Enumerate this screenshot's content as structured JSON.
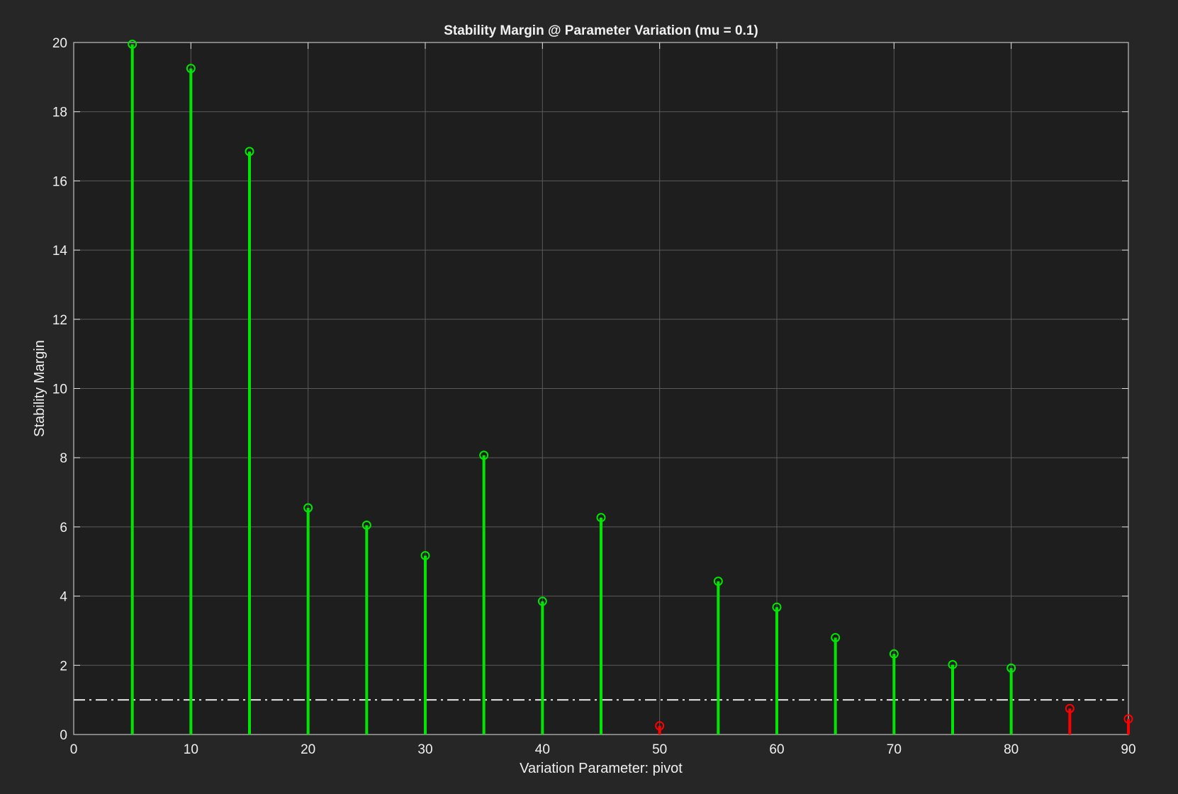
{
  "chart_data": {
    "type": "stem",
    "title": "Stability Margin @ Parameter Variation (mu = 0.1)",
    "xlabel": "Variation Parameter: pivot",
    "ylabel": "Stability Margin",
    "xlim": [
      0,
      90
    ],
    "ylim": [
      0,
      20
    ],
    "xticks": [
      0,
      10,
      20,
      30,
      40,
      50,
      60,
      70,
      80,
      90
    ],
    "yticks": [
      0,
      2,
      4,
      6,
      8,
      10,
      12,
      14,
      16,
      18,
      20
    ],
    "grid": true,
    "threshold": 1,
    "colors": {
      "background": "#262626",
      "axes_background": "#1e1e1e",
      "grid": "#5a5a5a",
      "stable": "#00e600",
      "unstable": "#ff0000",
      "threshold_line": "#e6e6e6",
      "text": "#f0f0f0"
    },
    "x": [
      5,
      10,
      15,
      20,
      25,
      30,
      35,
      40,
      45,
      50,
      55,
      60,
      65,
      70,
      75,
      80,
      85,
      90
    ],
    "values": [
      19.95,
      19.25,
      16.85,
      6.55,
      6.05,
      5.17,
      8.07,
      3.85,
      6.27,
      0.25,
      4.43,
      3.68,
      2.8,
      2.33,
      2.02,
      1.92,
      0.75,
      0.45
    ]
  }
}
